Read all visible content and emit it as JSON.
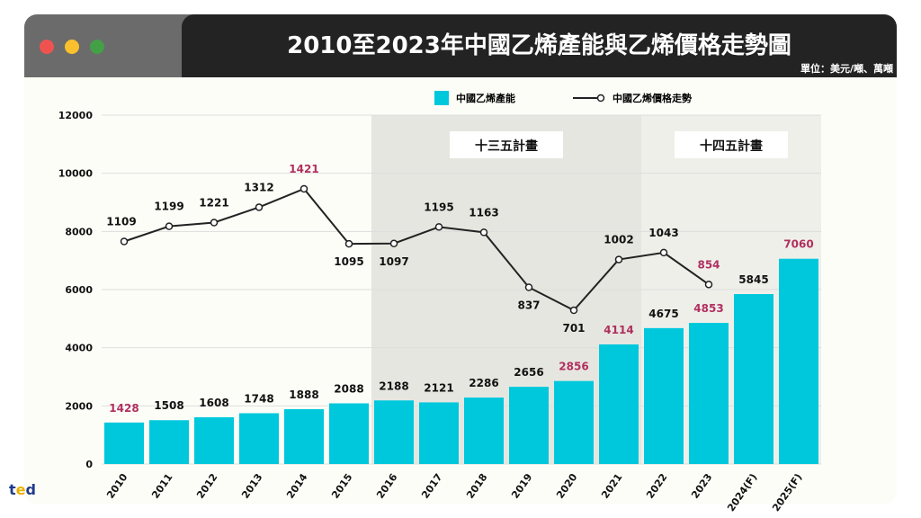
{
  "window": {
    "dots": [
      "#ef5350",
      "#fbc02d",
      "#43a047"
    ]
  },
  "title": "2010至2023年中國乙烯產能與乙烯價格走勢圖",
  "unit": "單位：美元/噸、萬噸",
  "logo": "ted",
  "colors": {
    "bar": "#00c8dc",
    "line": "#222222",
    "highlight": "#b03060",
    "shade1": "#e6e6e0",
    "shade2": "#efefea"
  },
  "chart_data": {
    "type": "bar+line",
    "title": "2010至2023年中國乙烯產能與乙烯價格走勢圖",
    "categories": [
      "2010",
      "2011",
      "2012",
      "2013",
      "2014",
      "2015",
      "2016",
      "2017",
      "2018",
      "2019",
      "2020",
      "2021",
      "2022",
      "2023",
      "2024(F)",
      "2025(F)"
    ],
    "ylim": [
      0,
      12000
    ],
    "yticks": [
      "0",
      "2000",
      "4000",
      "6000",
      "8000",
      "10000",
      "12000"
    ],
    "legend_position": "top-center",
    "series": [
      {
        "name": "中國乙烯產能",
        "type": "bar",
        "values": [
          1428,
          1508,
          1608,
          1748,
          1888,
          2088,
          2188,
          2121,
          2286,
          2656,
          2856,
          4114,
          4675,
          4853,
          5845,
          7060
        ],
        "highlighted": [
          "2010",
          "2020",
          "2021",
          "2023",
          "2025(F)"
        ]
      },
      {
        "name": "中國乙烯價格走勢",
        "type": "line",
        "values": [
          1109,
          1199,
          1221,
          1312,
          1421,
          1095,
          1097,
          1195,
          1163,
          837,
          701,
          1002,
          1043,
          854,
          null,
          null
        ],
        "highlighted": [
          "2014",
          "2023"
        ]
      }
    ],
    "annotations": [
      {
        "label": "十三五計畫",
        "from": "2016",
        "to": "2021"
      },
      {
        "label": "十四五計畫",
        "from": "2022",
        "to": "2025(F)"
      }
    ],
    "grid": true
  }
}
